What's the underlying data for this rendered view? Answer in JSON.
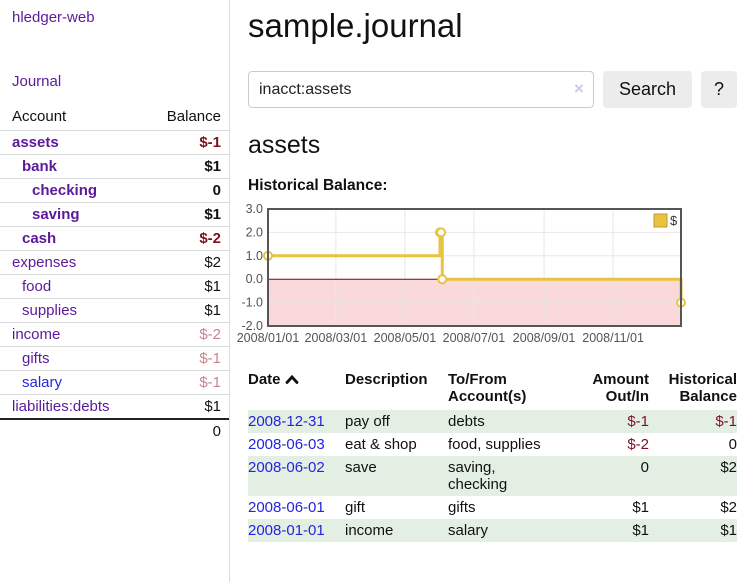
{
  "sidebar": {
    "brand": "hledger-web",
    "journal_link": "Journal",
    "accounts_header": {
      "account": "Account",
      "balance": "Balance"
    },
    "accounts": [
      {
        "name": "assets",
        "balance": "$-1",
        "depth": 0,
        "bold": true,
        "balance_style": "neg-strong",
        "link_style": "purple"
      },
      {
        "name": "bank",
        "balance": "$1",
        "depth": 1,
        "bold": true,
        "balance_style": "pos",
        "link_style": "purple"
      },
      {
        "name": "checking",
        "balance": "0",
        "depth": 2,
        "bold": true,
        "balance_style": "pos",
        "link_style": "purple"
      },
      {
        "name": "saving",
        "balance": "$1",
        "depth": 2,
        "bold": true,
        "balance_style": "pos",
        "link_style": "purple"
      },
      {
        "name": "cash",
        "balance": "$-2",
        "depth": 1,
        "bold": true,
        "balance_style": "neg-strong",
        "link_style": "purple"
      },
      {
        "name": "expenses",
        "balance": "$2",
        "depth": 0,
        "bold": false,
        "balance_style": "pos",
        "link_style": "purple"
      },
      {
        "name": "food",
        "balance": "$1",
        "depth": 1,
        "bold": false,
        "balance_style": "pos",
        "link_style": "purple"
      },
      {
        "name": "supplies",
        "balance": "$1",
        "depth": 1,
        "bold": false,
        "balance_style": "pos",
        "link_style": "purple"
      },
      {
        "name": "income",
        "balance": "$-2",
        "depth": 0,
        "bold": false,
        "balance_style": "neg-soft",
        "link_style": "purple"
      },
      {
        "name": "gifts",
        "balance": "$-1",
        "depth": 1,
        "bold": false,
        "balance_style": "neg-soft",
        "link_style": "purple"
      },
      {
        "name": "salary",
        "balance": "$-1",
        "depth": 1,
        "bold": false,
        "balance_style": "neg-soft",
        "link_style": "blue"
      },
      {
        "name": "liabilities:debts",
        "balance": "$1",
        "depth": 0,
        "bold": false,
        "balance_style": "pos",
        "link_style": "purple"
      }
    ],
    "total": "0"
  },
  "main": {
    "title": "sample.journal",
    "search": {
      "value": "inacct:assets",
      "clear_icon": "×",
      "button": "Search",
      "help_button": "?"
    },
    "account_heading": "assets",
    "chart_label": "Historical Balance:"
  },
  "chart_data": {
    "type": "line",
    "step": true,
    "title": "Historical Balance",
    "series": [
      {
        "name": "$",
        "color": "#e8c33f",
        "points": [
          [
            "2008-01-01",
            1
          ],
          [
            "2008-06-01",
            2
          ],
          [
            "2008-06-02",
            2
          ],
          [
            "2008-06-03",
            0
          ],
          [
            "2008-12-31",
            -1
          ]
        ]
      }
    ],
    "x_range": [
      "2008-01-01",
      "2008-12-31"
    ],
    "x_ticks": [
      "2008/01/01",
      "2008/03/01",
      "2008/05/01",
      "2008/07/01",
      "2008/09/01",
      "2008/11/01"
    ],
    "y_ticks": [
      3.0,
      2.0,
      1.0,
      0.0,
      -1.0,
      -2.0
    ],
    "ylim": [
      -2,
      3
    ],
    "grid": true,
    "legend_position": "top-right",
    "negative_region_color": "#f9d9d9",
    "zero_line_color": "#8b0000",
    "border_color": "#565656",
    "tick_label_color": "#545454"
  },
  "register": {
    "headers": {
      "date": "Date",
      "sort_indicator": "chevron-up",
      "description": "Description",
      "tofrom": "To/From Account(s)",
      "amount": "Amount Out/In",
      "balance": "Historical Balance"
    },
    "rows": [
      {
        "date": "2008-12-31",
        "description": "pay off",
        "accounts": "debts",
        "amount": "$-1",
        "balance": "$-1"
      },
      {
        "date": "2008-06-03",
        "description": "eat & shop",
        "accounts": "food, supplies",
        "amount": "$-2",
        "balance": "0"
      },
      {
        "date": "2008-06-02",
        "description": "save",
        "accounts": "saving, checking",
        "amount": "0",
        "balance": "$2"
      },
      {
        "date": "2008-06-01",
        "description": "gift",
        "accounts": "gifts",
        "amount": "$1",
        "balance": "$2"
      },
      {
        "date": "2008-01-01",
        "description": "income",
        "accounts": "salary",
        "amount": "$1",
        "balance": "$1"
      }
    ]
  },
  "colors": {
    "link_purple": "#5b1a9a",
    "link_blue": "#2727e0",
    "negative_strong": "#7e1220",
    "negative_soft": "#c9848c",
    "row_stripe_green": "#e4efe3",
    "chart_line_yellow": "#e8c33f"
  }
}
